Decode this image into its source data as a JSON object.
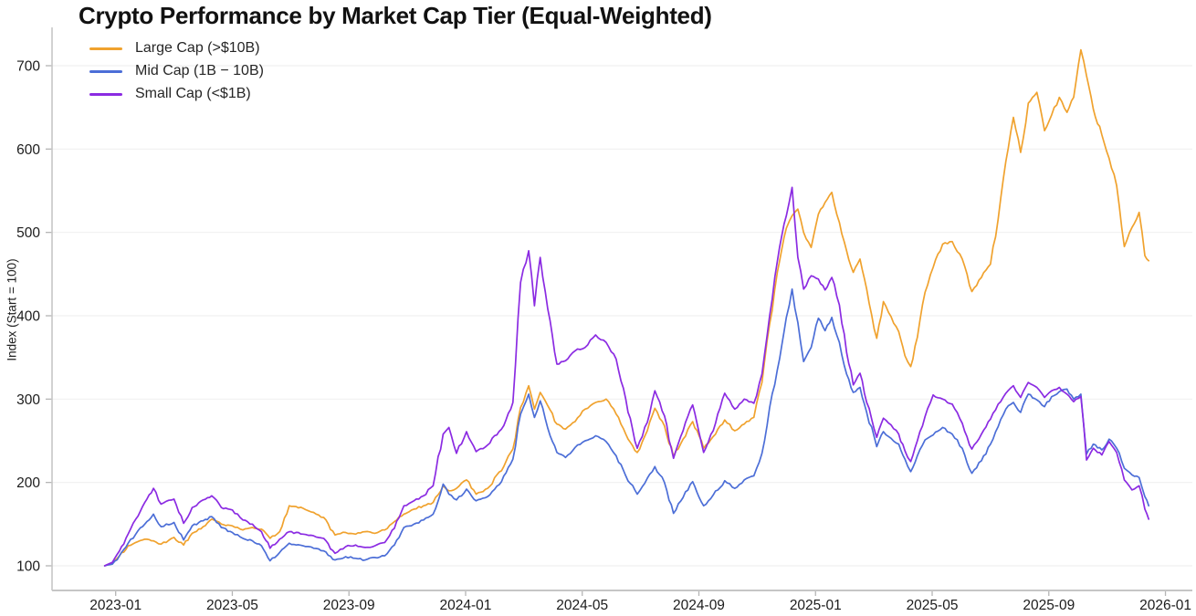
{
  "title": "Crypto Performance by Market Cap Tier (Equal-Weighted)",
  "y_axis_title": "Index (Start = 100)",
  "colors": {
    "large_cap": "#F0A22E",
    "mid_cap": "#4C6ED7",
    "small_cap": "#8B2BE2",
    "grid": "#f1f1f1",
    "spine": "#c6c6c6",
    "tick_text": "#1c1c1c"
  },
  "chart_data": {
    "type": "line",
    "title": "Crypto Performance by Market Cap Tier (Equal-Weighted)",
    "xlabel": "",
    "ylabel": "Index (Start = 100)",
    "ylim": [
      60,
      750
    ],
    "y_ticks": [
      100,
      200,
      300,
      400,
      500,
      600,
      700
    ],
    "x_ticks": [
      "2023-01",
      "2023-05",
      "2023-09",
      "2024-01",
      "2024-05",
      "2024-09",
      "2025-01",
      "2025-05",
      "2025-09",
      "2026-01"
    ],
    "grid": true,
    "legend_position": "upper left",
    "x": [
      "2022-12-20",
      "2022-12-28",
      "2023-01-05",
      "2023-01-14",
      "2023-01-22",
      "2023-02-01",
      "2023-02-10",
      "2023-02-18",
      "2023-03-01",
      "2023-03-11",
      "2023-03-20",
      "2023-04-01",
      "2023-04-10",
      "2023-04-20",
      "2023-05-01",
      "2023-05-12",
      "2023-05-22",
      "2023-06-01",
      "2023-06-10",
      "2023-06-20",
      "2023-06-30",
      "2023-07-14",
      "2023-07-25",
      "2023-08-05",
      "2023-08-17",
      "2023-08-28",
      "2023-09-08",
      "2023-09-18",
      "2023-09-28",
      "2023-10-08",
      "2023-10-18",
      "2023-10-28",
      "2023-11-08",
      "2023-11-18",
      "2023-11-28",
      "2023-12-08",
      "2023-12-14",
      "2023-12-22",
      "2024-01-02",
      "2024-01-12",
      "2024-01-24",
      "2024-02-08",
      "2024-02-20",
      "2024-02-28",
      "2024-03-06",
      "2024-03-12",
      "2024-03-18",
      "2024-03-26",
      "2024-04-05",
      "2024-04-14",
      "2024-04-24",
      "2024-05-04",
      "2024-05-15",
      "2024-05-26",
      "2024-06-06",
      "2024-06-16",
      "2024-06-28",
      "2024-07-08",
      "2024-07-16",
      "2024-07-26",
      "2024-08-05",
      "2024-08-15",
      "2024-08-25",
      "2024-09-06",
      "2024-09-16",
      "2024-09-28",
      "2024-10-08",
      "2024-10-18",
      "2024-10-28",
      "2024-11-06",
      "2024-11-14",
      "2024-11-22",
      "2024-12-01",
      "2024-12-07",
      "2024-12-13",
      "2024-12-19",
      "2024-12-27",
      "2025-01-04",
      "2025-01-11",
      "2025-01-18",
      "2025-01-26",
      "2025-02-03",
      "2025-02-10",
      "2025-02-17",
      "2025-02-24",
      "2025-03-04",
      "2025-03-11",
      "2025-03-19",
      "2025-03-27",
      "2025-04-03",
      "2025-04-09",
      "2025-04-16",
      "2025-04-24",
      "2025-05-02",
      "2025-05-12",
      "2025-05-22",
      "2025-06-02",
      "2025-06-12",
      "2025-06-22",
      "2025-07-01",
      "2025-07-09",
      "2025-07-17",
      "2025-07-25",
      "2025-08-02",
      "2025-08-10",
      "2025-08-19",
      "2025-08-27",
      "2025-09-04",
      "2025-09-12",
      "2025-09-20",
      "2025-09-27",
      "2025-10-04",
      "2025-10-10",
      "2025-10-17",
      "2025-10-26",
      "2025-11-03",
      "2025-11-11",
      "2025-11-19",
      "2025-11-27",
      "2025-12-04",
      "2025-12-10",
      "2025-12-14"
    ],
    "series": [
      {
        "name": "Large Cap (>$10B)",
        "color": "#F0A22E",
        "values": [
          100,
          103,
          112,
          124,
          128,
          132,
          130,
          126,
          134,
          125,
          139,
          147,
          156,
          150,
          148,
          143,
          146,
          144,
          133,
          141,
          172,
          169,
          164,
          158,
          137,
          140,
          138,
          141,
          139,
          143,
          153,
          162,
          168,
          172,
          176,
          196,
          190,
          193,
          203,
          186,
          193,
          214,
          240,
          290,
          316,
          288,
          308,
          292,
          270,
          264,
          273,
          288,
          296,
          300,
          282,
          258,
          236,
          262,
          289,
          268,
          231,
          252,
          273,
          241,
          255,
          275,
          262,
          270,
          278,
          320,
          390,
          452,
          505,
          520,
          528,
          500,
          482,
          522,
          536,
          548,
          512,
          478,
          452,
          468,
          432,
          373,
          417,
          399,
          381,
          352,
          339,
          374,
          428,
          458,
          486,
          489,
          468,
          429,
          446,
          462,
          516,
          585,
          638,
          596,
          655,
          668,
          622,
          641,
          662,
          644,
          662,
          719,
          688,
          648,
          617,
          589,
          556,
          483,
          506,
          524,
          472,
          466
        ]
      },
      {
        "name": "Mid Cap (1B − 10B)",
        "color": "#4C6ED7",
        "values": [
          100,
          102,
          112,
          127,
          138,
          150,
          162,
          147,
          152,
          131,
          148,
          154,
          159,
          146,
          140,
          133,
          130,
          124,
          106,
          116,
          127,
          124,
          121,
          118,
          107,
          111,
          109,
          107,
          110,
          112,
          125,
          146,
          150,
          155,
          162,
          198,
          186,
          179,
          192,
          178,
          183,
          201,
          228,
          282,
          306,
          278,
          298,
          265,
          236,
          230,
          242,
          250,
          256,
          249,
          232,
          208,
          186,
          205,
          219,
          200,
          163,
          182,
          201,
          172,
          185,
          202,
          193,
          203,
          208,
          235,
          290,
          335,
          398,
          432,
          392,
          345,
          362,
          397,
          382,
          398,
          368,
          330,
          308,
          314,
          284,
          243,
          261,
          253,
          246,
          228,
          213,
          232,
          251,
          257,
          266,
          258,
          241,
          211,
          226,
          246,
          267,
          288,
          296,
          284,
          306,
          299,
          291,
          303,
          309,
          312,
          300,
          306,
          234,
          246,
          239,
          252,
          241,
          217,
          209,
          206,
          183,
          172
        ]
      },
      {
        "name": "Small Cap (<$1B)",
        "color": "#8B2BE2",
        "values": [
          100,
          104,
          118,
          138,
          156,
          176,
          193,
          174,
          180,
          151,
          170,
          179,
          184,
          170,
          167,
          155,
          150,
          141,
          121,
          132,
          141,
          138,
          136,
          133,
          115,
          123,
          125,
          122,
          124,
          128,
          145,
          172,
          178,
          184,
          196,
          258,
          266,
          235,
          261,
          237,
          245,
          264,
          296,
          440,
          478,
          412,
          470,
          408,
          342,
          346,
          358,
          362,
          377,
          368,
          348,
          300,
          241,
          272,
          310,
          280,
          229,
          262,
          293,
          236,
          262,
          307,
          288,
          300,
          295,
          330,
          400,
          465,
          520,
          554,
          470,
          432,
          448,
          444,
          431,
          446,
          413,
          356,
          317,
          331,
          296,
          254,
          277,
          269,
          258,
          238,
          225,
          250,
          279,
          305,
          300,
          294,
          271,
          240,
          258,
          276,
          294,
          307,
          316,
          302,
          320,
          314,
          302,
          310,
          314,
          306,
          297,
          303,
          227,
          241,
          233,
          249,
          236,
          203,
          191,
          196,
          168,
          156
        ]
      }
    ]
  }
}
